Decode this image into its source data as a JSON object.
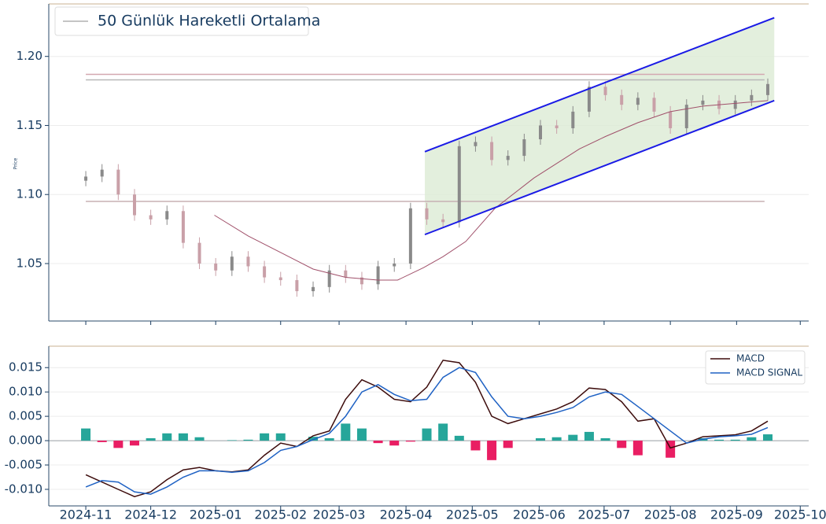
{
  "chart_data": [
    {
      "type": "candlestick",
      "y_label": "Price",
      "x": [
        0,
        0.25,
        0.5,
        0.75,
        1,
        1.25,
        1.5,
        1.75,
        2,
        2.25,
        2.5,
        2.75,
        3,
        3.25,
        3.5,
        3.75,
        4,
        4.25,
        4.5,
        4.75,
        5,
        5.25,
        5.5,
        5.75,
        6,
        6.25,
        6.5,
        6.75,
        7,
        7.25,
        7.5,
        7.75,
        8,
        8.25,
        8.5,
        8.75,
        9,
        9.25,
        9.5,
        9.75,
        10,
        10.25,
        10.5
      ],
      "open": [
        1.11,
        1.113,
        1.118,
        1.1,
        1.085,
        1.082,
        1.088,
        1.065,
        1.05,
        1.045,
        1.055,
        1.048,
        1.04,
        1.038,
        1.03,
        1.033,
        1.045,
        1.04,
        1.035,
        1.048,
        1.05,
        1.09,
        1.082,
        1.08,
        1.135,
        1.138,
        1.125,
        1.128,
        1.14,
        1.15,
        1.148,
        1.16,
        1.178,
        1.172,
        1.165,
        1.17,
        1.16,
        1.148,
        1.165,
        1.168,
        1.162,
        1.168,
        1.172
      ],
      "high": [
        1.117,
        1.122,
        1.122,
        1.104,
        1.089,
        1.092,
        1.092,
        1.069,
        1.054,
        1.059,
        1.059,
        1.052,
        1.044,
        1.042,
        1.037,
        1.049,
        1.049,
        1.044,
        1.052,
        1.054,
        1.094,
        1.094,
        1.086,
        1.139,
        1.142,
        1.142,
        1.132,
        1.144,
        1.154,
        1.154,
        1.164,
        1.182,
        1.182,
        1.176,
        1.174,
        1.174,
        1.164,
        1.169,
        1.172,
        1.172,
        1.172,
        1.176,
        1.184
      ],
      "low": [
        1.106,
        1.109,
        1.096,
        1.081,
        1.078,
        1.078,
        1.061,
        1.046,
        1.041,
        1.041,
        1.044,
        1.036,
        1.034,
        1.026,
        1.026,
        1.029,
        1.036,
        1.031,
        1.031,
        1.044,
        1.046,
        1.078,
        1.076,
        1.076,
        1.131,
        1.121,
        1.121,
        1.124,
        1.136,
        1.144,
        1.144,
        1.156,
        1.168,
        1.161,
        1.161,
        1.156,
        1.144,
        1.144,
        1.161,
        1.158,
        1.158,
        1.164,
        1.168
      ],
      "close": [
        1.113,
        1.118,
        1.1,
        1.085,
        1.082,
        1.088,
        1.065,
        1.05,
        1.045,
        1.055,
        1.048,
        1.04,
        1.038,
        1.03,
        1.033,
        1.045,
        1.04,
        1.035,
        1.048,
        1.05,
        1.09,
        1.082,
        1.08,
        1.135,
        1.138,
        1.125,
        1.128,
        1.14,
        1.15,
        1.148,
        1.16,
        1.178,
        1.172,
        1.165,
        1.17,
        1.16,
        1.148,
        1.165,
        1.168,
        1.162,
        1.168,
        1.172,
        1.18
      ],
      "up_color": "#8a8a8a",
      "down_color": "#c9a0a8",
      "series": [
        {
          "name": "50 Günlük Hareketli Ortalama",
          "color": "#a0506a",
          "x": [
            1.98,
            2.5,
            3.0,
            3.5,
            4.0,
            4.5,
            4.8,
            5.2,
            5.5,
            5.85,
            6.3,
            6.9,
            7.6,
            8.0,
            8.5,
            9.0,
            9.5,
            10.0,
            10.5
          ],
          "values": [
            1.085,
            1.07,
            1.058,
            1.046,
            1.04,
            1.038,
            1.038,
            1.047,
            1.055,
            1.066,
            1.09,
            1.112,
            1.133,
            1.142,
            1.152,
            1.16,
            1.164,
            1.166,
            1.168
          ]
        }
      ],
      "legend_color": "#b0b0b0",
      "hlines": [
        {
          "value": 1.187,
          "color": "#d4a8b0"
        },
        {
          "value": 1.183,
          "color": "#b8b8b8"
        },
        {
          "value": 1.095,
          "color": "#c8b0b4"
        }
      ],
      "hline_x": [
        0,
        10.45
      ],
      "channel": {
        "color": "#1a1ae6",
        "fill": "#dcebd5",
        "upper": [
          [
            5.22,
            1.131
          ],
          [
            10.6,
            1.228
          ]
        ],
        "lower": [
          [
            5.22,
            1.071
          ],
          [
            10.6,
            1.168
          ]
        ]
      },
      "ylim": [
        1.0084,
        1.238
      ],
      "yticks": [
        {
          "value": 1.2,
          "label": "1.20"
        },
        1.15,
        {
          "value": 1.1,
          "label": "1.10"
        },
        1.05
      ],
      "grid": true
    },
    {
      "type": "macd",
      "x": [
        0,
        0.25,
        0.5,
        0.75,
        1,
        1.25,
        1.5,
        1.75,
        2,
        2.25,
        2.5,
        2.75,
        3,
        3.25,
        3.5,
        3.75,
        4,
        4.25,
        4.5,
        4.75,
        5,
        5.25,
        5.5,
        5.75,
        6,
        6.25,
        6.5,
        6.75,
        7,
        7.25,
        7.5,
        7.75,
        8,
        8.25,
        8.5,
        8.75,
        9,
        9.25,
        9.5,
        9.75,
        10,
        10.25,
        10.5
      ],
      "series": [
        {
          "name": "MACD",
          "color": "#3d0c0c",
          "values": [
            -0.007,
            -0.0085,
            -0.01,
            -0.0115,
            -0.0105,
            -0.008,
            -0.006,
            -0.0055,
            -0.0062,
            -0.0064,
            -0.006,
            -0.003,
            -0.0005,
            -0.0012,
            0.001,
            0.002,
            0.0085,
            0.0125,
            0.011,
            0.0085,
            0.008,
            0.011,
            0.0165,
            0.016,
            0.012,
            0.005,
            0.0035,
            0.0045,
            0.0055,
            0.0065,
            0.008,
            0.0108,
            0.0105,
            0.008,
            0.004,
            0.0045,
            -0.0015,
            -0.0005,
            0.0008,
            0.001,
            0.0012,
            0.002,
            0.004
          ]
        },
        {
          "name": "MACD SIGNAL",
          "color": "#1f62c4",
          "values": [
            -0.0095,
            -0.0082,
            -0.0085,
            -0.0105,
            -0.011,
            -0.0095,
            -0.0075,
            -0.0062,
            -0.0062,
            -0.0065,
            -0.0062,
            -0.0045,
            -0.002,
            -0.0012,
            0.0002,
            0.0015,
            0.005,
            0.01,
            0.0115,
            0.0095,
            0.0082,
            0.0085,
            0.013,
            0.015,
            0.014,
            0.009,
            0.005,
            0.0045,
            0.005,
            0.0058,
            0.0068,
            0.009,
            0.01,
            0.0095,
            0.007,
            0.0045,
            0.002,
            -0.0005,
            0.0003,
            0.0008,
            0.001,
            0.0013,
            0.0027
          ]
        }
      ],
      "histogram": [
        0.0025,
        -0.0003,
        -0.0015,
        -0.001,
        0.0005,
        0.0015,
        0.0015,
        0.0007,
        0,
        0.0001,
        0.0002,
        0.0015,
        0.0015,
        0,
        0.0008,
        0.0005,
        0.0035,
        0.0025,
        -0.0005,
        -0.001,
        -0.0002,
        0.0025,
        0.0035,
        0.001,
        -0.002,
        -0.004,
        -0.0015,
        0,
        0.0005,
        0.0007,
        0.0012,
        0.0018,
        0.0005,
        -0.0015,
        -0.003,
        0,
        -0.0035,
        0,
        0.0005,
        0.0002,
        0.0002,
        0.0007,
        0.0013
      ],
      "pos_color": "#26a69a",
      "neg_color": "#e91e63",
      "ylim": [
        -0.0134,
        0.0194
      ],
      "yticks": [
        0.015,
        {
          "value": 0.01,
          "label": "0.010"
        },
        0.005,
        {
          "value": 0,
          "label": "0.000"
        },
        -0.005,
        {
          "value": -0.01,
          "label": "-0.010"
        }
      ],
      "xlim": [
        -0.57,
        11.13
      ],
      "xticks": [
        {
          "value": 0,
          "label": "2024-11"
        },
        {
          "value": 1,
          "label": "2024-12"
        },
        {
          "value": 2,
          "label": "2025-01"
        },
        {
          "value": 3,
          "label": "2025-02"
        },
        {
          "value": 3.9,
          "label": "2025-03"
        },
        {
          "value": 4.93,
          "label": "2025-04"
        },
        {
          "value": 5.95,
          "label": "2025-05"
        },
        {
          "value": 6.98,
          "label": "2025-06"
        },
        {
          "value": 7.98,
          "label": "2025-07"
        },
        {
          "value": 9.0,
          "label": "2025-08"
        },
        {
          "value": 10.02,
          "label": "2025-09"
        },
        {
          "value": 11.0,
          "label": "2025-10"
        }
      ],
      "grid": true
    }
  ]
}
